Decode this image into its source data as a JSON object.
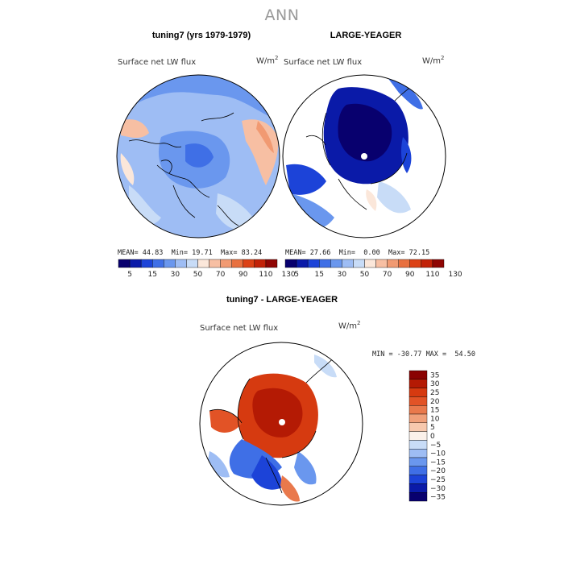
{
  "title": "ANN",
  "colors": {
    "abs_scale": [
      "#08006e",
      "#0a1aa8",
      "#1c43d8",
      "#3f6fe6",
      "#6a97ee",
      "#9ebdf4",
      "#c8dcf7",
      "#fbe7da",
      "#f7bfa3",
      "#f19a72",
      "#e8703f",
      "#dc4216",
      "#c22208",
      "#8f0503"
    ],
    "diff_scale": [
      "#08006e",
      "#0a1aa8",
      "#1c43d8",
      "#3f6fe6",
      "#6a97ee",
      "#9ebdf4",
      "#c8dcf7",
      "#fbf1ea",
      "#f7c8ad",
      "#f0a07a",
      "#e9794c",
      "#e25326",
      "#d63a10",
      "#b41a04",
      "#8a0202"
    ],
    "land_outline": "#000000",
    "mask": "#ffffff"
  },
  "panels": [
    {
      "title": "tuning7 (yrs 1979-1979)",
      "variable": "Surface net LW flux",
      "units": "W/m",
      "units_sup": "2",
      "mean_label": "MEAN=",
      "mean": "44.83",
      "min_label": "Min=",
      "min": "19.71",
      "max_label": "Max=",
      "max": "83.24"
    },
    {
      "title": "LARGE-YEAGER",
      "variable": "Surface net LW flux",
      "units": "W/m",
      "units_sup": "2",
      "mean_label": "MEAN=",
      "mean": "27.66",
      "min_label": "Min=",
      "min": "0.00",
      "max_label": "Max=",
      "max": "72.15"
    },
    {
      "title": "tuning7 - LARGE-YEAGER",
      "variable": "Surface net LW flux",
      "units": "W/m",
      "units_sup": "2",
      "min_label": "MIN =",
      "min": "-30.77",
      "max_label": "MAX =",
      "max": "54.50"
    }
  ],
  "chart_data": [
    {
      "type": "heatmap",
      "projection": "north polar stereographic",
      "title": "tuning7 (yrs 1979-1979)",
      "variable": "Surface net LW flux",
      "units": "W/m^2",
      "stats": {
        "mean": 44.83,
        "min": 19.71,
        "max": 83.24
      },
      "colorbar_levels": [
        5,
        10,
        15,
        20,
        30,
        40,
        50,
        60,
        70,
        80,
        90,
        100,
        110,
        120,
        130
      ],
      "colorbar_tick_labels": [
        "5",
        "15",
        "30",
        "50",
        "70",
        "90",
        "110",
        "130"
      ],
      "dominant_value_range": [
        30,
        60
      ]
    },
    {
      "type": "heatmap",
      "projection": "north polar stereographic",
      "title": "LARGE-YEAGER",
      "variable": "Surface net LW flux",
      "units": "W/m^2",
      "stats": {
        "mean": 27.66,
        "min": 0.0,
        "max": 72.15
      },
      "colorbar_levels": [
        5,
        10,
        15,
        20,
        30,
        40,
        50,
        60,
        70,
        80,
        90,
        100,
        110,
        120,
        130
      ],
      "colorbar_tick_labels": [
        "5",
        "15",
        "30",
        "50",
        "70",
        "90",
        "110",
        "130"
      ],
      "dominant_value_range": [
        5,
        30
      ],
      "missing_over_land": true
    },
    {
      "type": "heatmap",
      "projection": "north polar stereographic",
      "title": "tuning7 - LARGE-YEAGER",
      "variable": "Surface net LW flux",
      "units": "W/m^2",
      "stats": {
        "min": -30.77,
        "max": 54.5
      },
      "colorbar_levels": [
        -35,
        -30,
        -25,
        -20,
        -15,
        -10,
        -5,
        0,
        5,
        10,
        15,
        20,
        25,
        30,
        35
      ],
      "colorbar_tick_labels": [
        "35",
        "30",
        "25",
        "20",
        "15",
        "10",
        "5",
        "0",
        "−5",
        "−10",
        "−15",
        "−20",
        "−25",
        "−30",
        "−35"
      ],
      "colorbar_orientation": "vertical",
      "dominant_value_range": [
        15,
        30
      ],
      "missing_over_land": true
    }
  ]
}
